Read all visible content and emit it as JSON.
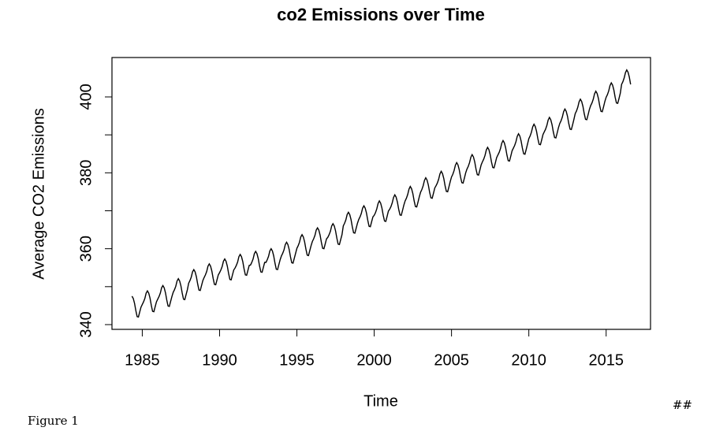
{
  "chart_data": {
    "type": "line",
    "title": "co2 Emissions over Time",
    "xlabel": "Time",
    "ylabel": "Average CO2 Emissions",
    "caption": "Figure 1",
    "corner_note": "##",
    "color": "#000000",
    "xlim": [
      1983.04,
      2017.87
    ],
    "ylim": [
      338.75,
      410.38
    ],
    "xticks": [
      1985,
      1990,
      1995,
      2000,
      2005,
      2010,
      2015
    ],
    "yticks": [
      340,
      360,
      380,
      400
    ],
    "yminorticks": [
      350,
      370,
      390
    ],
    "x": [
      1984.333,
      1984.417,
      1984.5,
      1984.583,
      1984.667,
      1984.75,
      1984.833,
      1984.917,
      1985,
      1985.083,
      1985.167,
      1985.25,
      1985.333,
      1985.417,
      1985.5,
      1985.583,
      1985.667,
      1985.75,
      1985.833,
      1985.917,
      1986,
      1986.083,
      1986.167,
      1986.25,
      1986.333,
      1986.417,
      1986.5,
      1986.583,
      1986.667,
      1986.75,
      1986.833,
      1986.917,
      1987,
      1987.083,
      1987.167,
      1987.25,
      1987.333,
      1987.417,
      1987.5,
      1987.583,
      1987.667,
      1987.75,
      1987.833,
      1987.917,
      1988,
      1988.083,
      1988.167,
      1988.25,
      1988.333,
      1988.417,
      1988.5,
      1988.583,
      1988.667,
      1988.75,
      1988.833,
      1988.917,
      1989,
      1989.083,
      1989.167,
      1989.25,
      1989.333,
      1989.417,
      1989.5,
      1989.583,
      1989.667,
      1989.75,
      1989.833,
      1989.917,
      1990,
      1990.083,
      1990.167,
      1990.25,
      1990.333,
      1990.417,
      1990.5,
      1990.583,
      1990.667,
      1990.75,
      1990.833,
      1990.917,
      1991,
      1991.083,
      1991.167,
      1991.25,
      1991.333,
      1991.417,
      1991.5,
      1991.583,
      1991.667,
      1991.75,
      1991.833,
      1991.917,
      1992,
      1992.083,
      1992.167,
      1992.25,
      1992.333,
      1992.417,
      1992.5,
      1992.583,
      1992.667,
      1992.75,
      1992.833,
      1992.917,
      1993,
      1993.083,
      1993.167,
      1993.25,
      1993.333,
      1993.417,
      1993.5,
      1993.583,
      1993.667,
      1993.75,
      1993.833,
      1993.917,
      1994,
      1994.083,
      1994.167,
      1994.25,
      1994.333,
      1994.417,
      1994.5,
      1994.583,
      1994.667,
      1994.75,
      1994.833,
      1994.917,
      1995,
      1995.083,
      1995.167,
      1995.25,
      1995.333,
      1995.417,
      1995.5,
      1995.583,
      1995.667,
      1995.75,
      1995.833,
      1995.917,
      1996,
      1996.083,
      1996.167,
      1996.25,
      1996.333,
      1996.417,
      1996.5,
      1996.583,
      1996.667,
      1996.75,
      1996.833,
      1996.917,
      1997,
      1997.083,
      1997.167,
      1997.25,
      1997.333,
      1997.417,
      1997.5,
      1997.583,
      1997.667,
      1997.75,
      1997.833,
      1997.917,
      1998,
      1998.083,
      1998.167,
      1998.25,
      1998.333,
      1998.417,
      1998.5,
      1998.583,
      1998.667,
      1998.75,
      1998.833,
      1998.917,
      1999,
      1999.083,
      1999.167,
      1999.25,
      1999.333,
      1999.417,
      1999.5,
      1999.583,
      1999.667,
      1999.75,
      1999.833,
      1999.917,
      2000,
      2000.083,
      2000.167,
      2000.25,
      2000.333,
      2000.417,
      2000.5,
      2000.583,
      2000.667,
      2000.75,
      2000.833,
      2000.917,
      2001,
      2001.083,
      2001.167,
      2001.25,
      2001.333,
      2001.417,
      2001.5,
      2001.583,
      2001.667,
      2001.75,
      2001.833,
      2001.917,
      2002,
      2002.083,
      2002.167,
      2002.25,
      2002.333,
      2002.417,
      2002.5,
      2002.583,
      2002.667,
      2002.75,
      2002.833,
      2002.917,
      2003,
      2003.083,
      2003.167,
      2003.25,
      2003.333,
      2003.417,
      2003.5,
      2003.583,
      2003.667,
      2003.75,
      2003.833,
      2003.917,
      2004,
      2004.083,
      2004.167,
      2004.25,
      2004.333,
      2004.417,
      2004.5,
      2004.583,
      2004.667,
      2004.75,
      2004.833,
      2004.917,
      2005,
      2005.083,
      2005.167,
      2005.25,
      2005.333,
      2005.417,
      2005.5,
      2005.583,
      2005.667,
      2005.75,
      2005.833,
      2005.917,
      2006,
      2006.083,
      2006.167,
      2006.25,
      2006.333,
      2006.417,
      2006.5,
      2006.583,
      2006.667,
      2006.75,
      2006.833,
      2006.917,
      2007,
      2007.083,
      2007.167,
      2007.25,
      2007.333,
      2007.417,
      2007.5,
      2007.583,
      2007.667,
      2007.75,
      2007.833,
      2007.917,
      2008,
      2008.083,
      2008.167,
      2008.25,
      2008.333,
      2008.417,
      2008.5,
      2008.583,
      2008.667,
      2008.75,
      2008.833,
      2008.917,
      2009,
      2009.083,
      2009.167,
      2009.25,
      2009.333,
      2009.417,
      2009.5,
      2009.583,
      2009.667,
      2009.75,
      2009.833,
      2009.917,
      2010,
      2010.083,
      2010.167,
      2010.25,
      2010.333,
      2010.417,
      2010.5,
      2010.583,
      2010.667,
      2010.75,
      2010.833,
      2010.917,
      2011,
      2011.083,
      2011.167,
      2011.25,
      2011.333,
      2011.417,
      2011.5,
      2011.583,
      2011.667,
      2011.75,
      2011.833,
      2011.917,
      2012,
      2012.083,
      2012.167,
      2012.25,
      2012.333,
      2012.417,
      2012.5,
      2012.583,
      2012.667,
      2012.75,
      2012.833,
      2012.917,
      2013,
      2013.083,
      2013.167,
      2013.25,
      2013.333,
      2013.417,
      2013.5,
      2013.583,
      2013.667,
      2013.75,
      2013.833,
      2013.917,
      2014,
      2014.083,
      2014.167,
      2014.25,
      2014.333,
      2014.417,
      2014.5,
      2014.583,
      2014.667,
      2014.75,
      2014.833,
      2014.917,
      2015,
      2015.083,
      2015.167,
      2015.25,
      2015.333,
      2015.417,
      2015.5,
      2015.583,
      2015.667,
      2015.75,
      2015.833,
      2015.917,
      2016,
      2016.083,
      2016.167,
      2016.25,
      2016.333,
      2016.417,
      2016.5,
      2016.583
    ],
    "values": [
      347.5,
      346.9,
      345.6,
      343.7,
      342.1,
      342.0,
      343.3,
      344.6,
      345.3,
      346.0,
      346.9,
      348.3,
      348.9,
      348.3,
      347.0,
      345.1,
      343.5,
      343.4,
      344.7,
      346.0,
      346.7,
      347.4,
      348.3,
      349.7,
      350.3,
      349.7,
      348.4,
      346.5,
      344.9,
      344.8,
      346.1,
      347.4,
      348.5,
      349.2,
      350.1,
      351.5,
      352.1,
      351.5,
      350.2,
      348.3,
      346.7,
      346.6,
      347.9,
      349.2,
      350.9,
      351.6,
      352.5,
      353.9,
      354.5,
      353.9,
      352.6,
      350.7,
      349.1,
      349.0,
      350.3,
      351.6,
      352.4,
      353.1,
      354.0,
      355.4,
      356.0,
      355.4,
      354.1,
      352.2,
      350.6,
      350.5,
      351.8,
      353.1,
      353.7,
      354.4,
      355.3,
      356.7,
      357.3,
      356.7,
      355.4,
      353.5,
      351.9,
      351.8,
      353.1,
      354.4,
      354.9,
      355.6,
      356.5,
      357.9,
      358.5,
      357.9,
      356.6,
      354.7,
      353.1,
      353.0,
      354.3,
      355.6,
      355.7,
      356.4,
      357.3,
      358.7,
      359.3,
      358.7,
      357.4,
      355.5,
      353.9,
      353.8,
      355.1,
      356.4,
      356.4,
      357.1,
      358.0,
      359.4,
      360.0,
      359.4,
      358.1,
      356.2,
      354.6,
      354.5,
      355.8,
      357.1,
      358.1,
      358.8,
      359.7,
      361.1,
      361.7,
      361.1,
      359.8,
      357.9,
      356.3,
      356.2,
      357.5,
      358.8,
      360.1,
      360.8,
      361.7,
      363.1,
      363.7,
      363.1,
      361.8,
      359.9,
      358.3,
      358.2,
      359.5,
      360.8,
      361.9,
      362.6,
      363.5,
      364.9,
      365.5,
      364.9,
      363.6,
      361.7,
      360.1,
      360.0,
      361.3,
      362.6,
      363.0,
      363.7,
      364.6,
      366.0,
      366.6,
      366.0,
      364.7,
      362.8,
      361.2,
      361.1,
      362.4,
      363.7,
      366.0,
      366.7,
      367.6,
      369.0,
      369.6,
      369.0,
      367.7,
      365.8,
      364.2,
      364.1,
      365.4,
      366.7,
      367.7,
      368.4,
      369.3,
      370.7,
      371.3,
      370.7,
      369.4,
      367.5,
      365.9,
      365.8,
      367.1,
      368.4,
      368.8,
      369.5,
      370.5,
      371.9,
      372.6,
      372.0,
      370.7,
      368.8,
      367.3,
      367.2,
      368.5,
      369.9,
      370.4,
      371.1,
      372.1,
      373.5,
      374.2,
      373.6,
      372.3,
      370.4,
      368.9,
      368.8,
      370.1,
      371.5,
      372.6,
      373.3,
      374.3,
      375.7,
      376.4,
      375.8,
      374.5,
      372.6,
      371.1,
      371.0,
      372.3,
      373.7,
      374.9,
      375.6,
      376.6,
      378.0,
      378.7,
      378.1,
      376.8,
      374.9,
      373.4,
      373.3,
      374.6,
      376.0,
      376.6,
      377.3,
      378.3,
      379.7,
      380.4,
      379.8,
      378.5,
      376.6,
      375.1,
      375.0,
      376.3,
      377.7,
      378.9,
      379.6,
      380.6,
      382.0,
      382.7,
      382.1,
      380.8,
      378.9,
      377.4,
      377.3,
      378.6,
      380.0,
      381.0,
      381.7,
      382.7,
      384.1,
      384.8,
      384.2,
      382.9,
      381.0,
      379.5,
      379.4,
      380.7,
      382.1,
      382.9,
      383.6,
      384.6,
      386.0,
      386.7,
      386.1,
      384.8,
      382.9,
      381.4,
      381.3,
      382.6,
      384.0,
      384.7,
      385.4,
      386.4,
      387.8,
      388.5,
      387.9,
      386.6,
      384.7,
      383.2,
      383.1,
      384.4,
      385.8,
      386.5,
      387.2,
      388.2,
      389.6,
      390.3,
      389.7,
      388.4,
      386.5,
      385.0,
      384.9,
      386.2,
      387.6,
      389.0,
      389.7,
      390.7,
      392.1,
      392.8,
      392.2,
      390.9,
      389.0,
      387.5,
      387.4,
      388.7,
      390.1,
      390.8,
      391.5,
      392.5,
      393.9,
      394.6,
      394.0,
      392.7,
      390.8,
      389.3,
      389.2,
      390.5,
      391.9,
      393.0,
      393.7,
      394.7,
      396.1,
      396.8,
      396.2,
      394.9,
      393.0,
      391.5,
      391.4,
      392.7,
      394.1,
      395.6,
      396.3,
      397.3,
      398.7,
      399.4,
      398.8,
      397.5,
      395.6,
      394.1,
      394.0,
      395.3,
      396.7,
      397.7,
      398.4,
      399.4,
      400.8,
      401.5,
      400.9,
      399.6,
      397.7,
      396.2,
      396.1,
      397.4,
      398.8,
      399.9,
      400.6,
      401.6,
      403.0,
      403.7,
      403.1,
      401.8,
      399.9,
      398.4,
      398.3,
      399.6,
      401.0,
      403.3,
      404.0,
      405.0,
      406.4,
      407.1,
      406.5,
      405.2,
      403.3
    ]
  }
}
